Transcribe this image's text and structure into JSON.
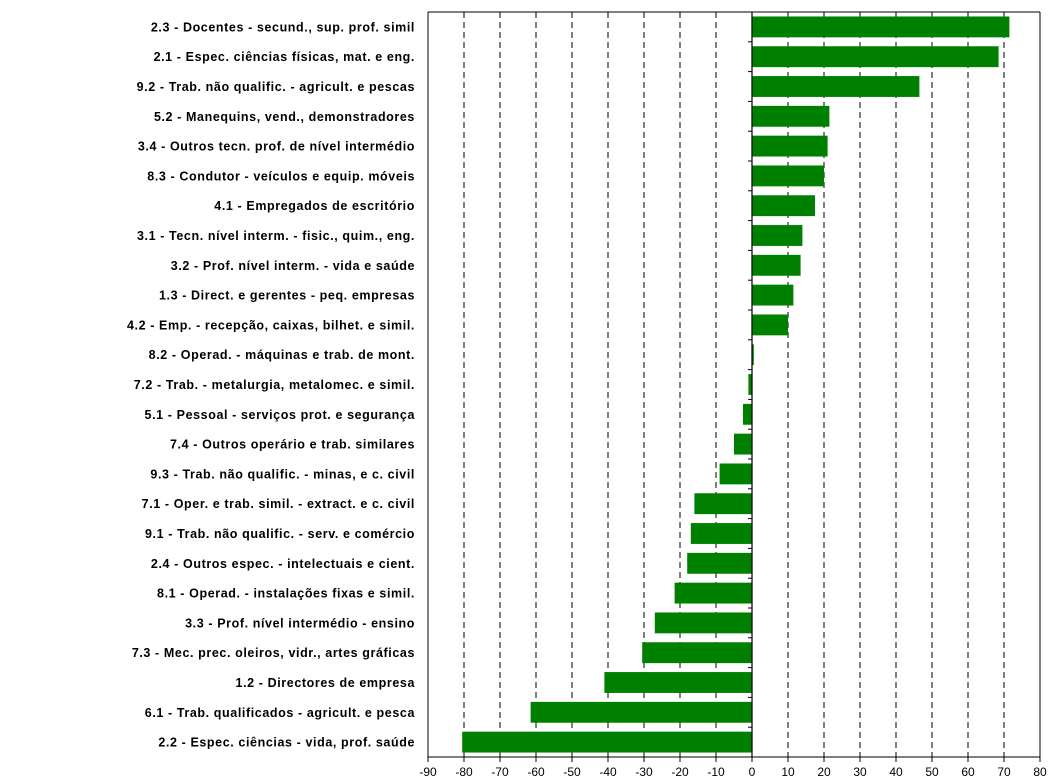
{
  "chart_data": {
    "type": "bar",
    "orientation": "horizontal",
    "title": "",
    "xlabel": "",
    "ylabel": "",
    "xlim": [
      -90,
      80
    ],
    "x_ticks": [
      -90,
      -80,
      -70,
      -60,
      -50,
      -40,
      -30,
      -20,
      -10,
      0,
      10,
      20,
      30,
      40,
      50,
      60,
      70,
      80
    ],
    "grid": "vertical-dashed",
    "bar_color": "#008000",
    "categories": [
      "2.3 - Docentes - secund., sup. prof. simil",
      "2.1 - Espec. ciências físicas, mat. e eng.",
      "9.2 - Trab. não qualific. - agricult. e pescas",
      "5.2 - Manequins, vend., demonstradores",
      "3.4 - Outros tecn. prof. de nível intermédio",
      "8.3 - Condutor - veículos e equip. móveis",
      "4.1 - Empregados de escritório",
      "3.1 - Tecn. nível interm. - fisic., quim., eng.",
      "3.2 - Prof. nível interm. - vida e saúde",
      "1.3 - Direct. e gerentes - peq. empresas",
      "4.2 - Emp. - recepção, caixas, bilhet. e simil.",
      "8.2 - Operad. - máquinas e trab. de mont.",
      "7.2 - Trab. - metalurgia, metalomec. e simil.",
      "5.1 - Pessoal - serviços prot. e segurança",
      "7.4 - Outros operário e trab. similares",
      "9.3 - Trab. não qualific. - minas, e c. civil",
      "7.1 - Oper. e trab. simil. - extract. e c. civil",
      "9.1 - Trab. não qualific. - serv. e comércio",
      "2.4 - Outros espec. - intelectuais e cient.",
      "8.1 - Operad. - instalações fixas e simil.",
      "3.3 - Prof. nível intermédio - ensino",
      "7.3 - Mec. prec. oleiros, vidr., artes gráficas",
      "1.2 - Directores de empresa",
      "6.1 - Trab. qualificados - agricult. e pesca",
      "2.2 - Espec. ciências - vida, prof. saúde"
    ],
    "values": [
      71.5,
      68.5,
      46.5,
      21.5,
      21,
      20,
      17.5,
      14,
      13.5,
      11.5,
      10,
      0.5,
      -1,
      -2.5,
      -5,
      -9,
      -16,
      -17,
      -18,
      -21.5,
      -27,
      -30.5,
      -41,
      -61.5,
      -80.5
    ]
  }
}
